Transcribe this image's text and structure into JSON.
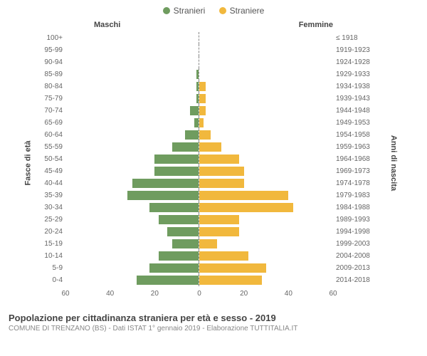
{
  "chart": {
    "type": "population-pyramid",
    "legend": {
      "male": {
        "label": "Stranieri",
        "color": "#6f9c5f"
      },
      "female": {
        "label": "Straniere",
        "color": "#f1b83d"
      }
    },
    "column_headers": {
      "left": "Maschi",
      "right": "Femmine"
    },
    "y_axis_left_title": "Fasce di età",
    "y_axis_right_title": "Anni di nascita",
    "xmax": 60,
    "xticks": [
      60,
      40,
      20,
      0,
      20,
      40,
      60
    ],
    "grid_color": "#eeeeee",
    "background_color": "#ffffff",
    "rows": [
      {
        "age": "100+",
        "birth": "≤ 1918",
        "m": 0,
        "f": 0
      },
      {
        "age": "95-99",
        "birth": "1919-1923",
        "m": 0,
        "f": 0
      },
      {
        "age": "90-94",
        "birth": "1924-1928",
        "m": 0,
        "f": 0
      },
      {
        "age": "85-89",
        "birth": "1929-1933",
        "m": 1,
        "f": 0
      },
      {
        "age": "80-84",
        "birth": "1934-1938",
        "m": 1,
        "f": 3
      },
      {
        "age": "75-79",
        "birth": "1939-1943",
        "m": 1,
        "f": 3
      },
      {
        "age": "70-74",
        "birth": "1944-1948",
        "m": 4,
        "f": 3
      },
      {
        "age": "65-69",
        "birth": "1949-1953",
        "m": 2,
        "f": 2
      },
      {
        "age": "60-64",
        "birth": "1954-1958",
        "m": 6,
        "f": 5
      },
      {
        "age": "55-59",
        "birth": "1959-1963",
        "m": 12,
        "f": 10
      },
      {
        "age": "50-54",
        "birth": "1964-1968",
        "m": 20,
        "f": 18
      },
      {
        "age": "45-49",
        "birth": "1969-1973",
        "m": 20,
        "f": 20
      },
      {
        "age": "40-44",
        "birth": "1974-1978",
        "m": 30,
        "f": 20
      },
      {
        "age": "35-39",
        "birth": "1979-1983",
        "m": 32,
        "f": 40
      },
      {
        "age": "30-34",
        "birth": "1984-1988",
        "m": 22,
        "f": 42
      },
      {
        "age": "25-29",
        "birth": "1989-1993",
        "m": 18,
        "f": 18
      },
      {
        "age": "20-24",
        "birth": "1994-1998",
        "m": 14,
        "f": 18
      },
      {
        "age": "15-19",
        "birth": "1999-2003",
        "m": 12,
        "f": 8
      },
      {
        "age": "10-14",
        "birth": "2004-2008",
        "m": 18,
        "f": 22
      },
      {
        "age": "5-9",
        "birth": "2009-2013",
        "m": 22,
        "f": 30
      },
      {
        "age": "0-4",
        "birth": "2014-2018",
        "m": 28,
        "f": 28
      }
    ]
  },
  "footer": {
    "title": "Popolazione per cittadinanza straniera per età e sesso - 2019",
    "subtitle": "COMUNE DI TRENZANO (BS) - Dati ISTAT 1° gennaio 2019 - Elaborazione TUTTITALIA.IT"
  }
}
